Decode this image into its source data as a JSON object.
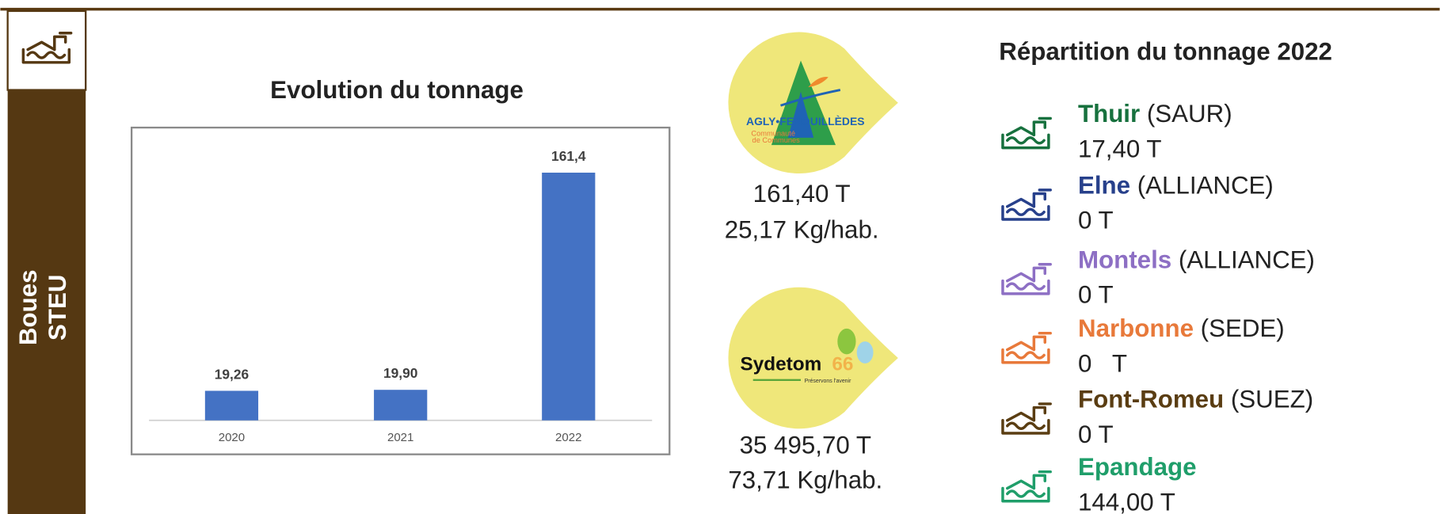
{
  "sidebar": {
    "title": [
      "Boues",
      "STEU"
    ]
  },
  "chart_data": {
    "type": "bar",
    "title": "Evolution du tonnage",
    "categories": [
      "2020",
      "2021",
      "2022"
    ],
    "values": [
      19.26,
      19.9,
      161.4
    ],
    "value_labels": [
      "19,26",
      "19,90",
      "161,4"
    ],
    "color": "#4472c4",
    "ylim": [
      0,
      180
    ]
  },
  "logos": [
    {
      "name": "AGLY•FENOUILLÈDES",
      "sub": [
        "Communauté",
        "de Communes"
      ],
      "tonnage": "161,40 T",
      "per_hab": "25,17 Kg/hab."
    },
    {
      "name": "Sydetom",
      "number": "66",
      "sub": [
        "Préservons l'avenir"
      ],
      "tonnage": "35 495,70 T",
      "per_hab": "73,71 Kg/hab."
    }
  ],
  "repartition": {
    "title": "Répartition du tonnage 2022",
    "items": [
      {
        "site": "Thuir",
        "operator": "(SAUR)",
        "tonnage": "17,40 T",
        "color": "#17713e"
      },
      {
        "site": "Elne",
        "operator": "(ALLIANCE)",
        "tonnage": "0 T",
        "color": "#27408b"
      },
      {
        "site": "Montels",
        "operator": "(ALLIANCE)",
        "tonnage": "0 T",
        "color": "#8d6fc4"
      },
      {
        "site": "Narbonne",
        "operator": "(SEDE)",
        "tonnage": "0   T",
        "color": "#e8793a"
      },
      {
        "site": "Font-Romeu",
        "operator": "(SUEZ)",
        "tonnage": "0 T",
        "color": "#5a3d12"
      },
      {
        "site": "Epandage",
        "tonnage": "144,00 T",
        "color": "#1f9e6a"
      }
    ]
  }
}
